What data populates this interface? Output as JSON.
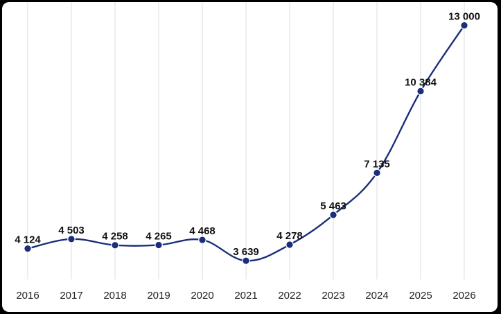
{
  "chart_data": {
    "type": "line",
    "title": "",
    "xlabel": "",
    "ylabel": "",
    "categories": [
      "2016",
      "2017",
      "2018",
      "2019",
      "2020",
      "2021",
      "2022",
      "2023",
      "2024",
      "2025",
      "2026"
    ],
    "series": [
      {
        "values": [
          4124,
          4503,
          4258,
          4265,
          4468,
          3639,
          4278,
          5463,
          7135,
          10384,
          13000
        ],
        "labels": [
          "4 124",
          "4 503",
          "4 258",
          "4 265",
          "4 468",
          "3 639",
          "4 278",
          "5 463",
          "7 135",
          "10 384",
          "13 000"
        ]
      }
    ],
    "ylim": [
      2900,
      13650
    ],
    "grid": {
      "vertical": true,
      "horizontal": false
    },
    "line_style": "smooth",
    "colors": {
      "line": "#1a2e7a",
      "marker": "#1a2e7a",
      "grid": "#e3e3e3",
      "background": "#ffffff",
      "frame": "#000000"
    }
  }
}
